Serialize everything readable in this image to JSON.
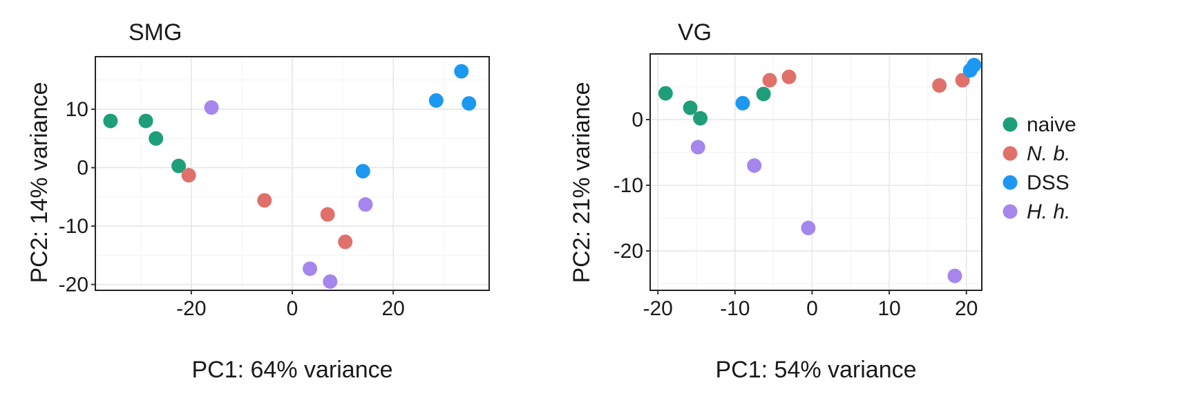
{
  "legend": {
    "title": "",
    "items": [
      {
        "label": "naive",
        "color": "#1f9e7a",
        "italic": false
      },
      {
        "label": "N. b.",
        "color": "#e0706a",
        "italic": true
      },
      {
        "label": "DSS",
        "color": "#1c98f0",
        "italic": false
      },
      {
        "label": "H. h.",
        "color": "#a586ec",
        "italic": true
      }
    ]
  },
  "chart_data": [
    {
      "type": "scatter",
      "title": "SMG",
      "xlabel": "PC1: 64% variance",
      "ylabel": "PC2: 14% variance",
      "xlim": [
        -39,
        39
      ],
      "ylim": [
        -21,
        19
      ],
      "xticks": [
        -20,
        0,
        20
      ],
      "yticks": [
        -20,
        -10,
        0,
        10
      ],
      "xtick_labels": [
        "-20",
        "0",
        "20"
      ],
      "ytick_labels": [
        "-20",
        "-10",
        "0",
        "10"
      ],
      "grid": true,
      "series": [
        {
          "name": "naive",
          "points": [
            {
              "x": -36,
              "y": 8
            },
            {
              "x": -29,
              "y": 8
            },
            {
              "x": -27,
              "y": 5
            },
            {
              "x": -22.5,
              "y": 0.3
            }
          ]
        },
        {
          "name": "N. b.",
          "points": [
            {
              "x": -20.5,
              "y": -1.3
            },
            {
              "x": -5.5,
              "y": -5.6
            },
            {
              "x": 7,
              "y": -8
            },
            {
              "x": 10.5,
              "y": -12.7
            }
          ]
        },
        {
          "name": "DSS",
          "points": [
            {
              "x": 14,
              "y": -0.6
            },
            {
              "x": 28.5,
              "y": 11.5
            },
            {
              "x": 33.5,
              "y": 16.5
            },
            {
              "x": 35,
              "y": 11
            }
          ]
        },
        {
          "name": "H. h.",
          "points": [
            {
              "x": -16,
              "y": 10.3
            },
            {
              "x": 3.5,
              "y": -17.3
            },
            {
              "x": 7.5,
              "y": -19.5
            },
            {
              "x": 14.5,
              "y": -6.3
            }
          ]
        }
      ]
    },
    {
      "type": "scatter",
      "title": "VG",
      "xlabel": "PC1: 54% variance",
      "ylabel": "PC2: 21% variance",
      "xlim": [
        -21,
        22
      ],
      "ylim": [
        -26,
        10
      ],
      "xticks": [
        -20,
        -10,
        0,
        10,
        20
      ],
      "yticks": [
        -20,
        -10,
        0
      ],
      "xtick_labels": [
        "-20",
        "-10",
        "0",
        "10",
        "20"
      ],
      "ytick_labels": [
        "-20",
        "-10",
        "0"
      ],
      "grid": true,
      "series": [
        {
          "name": "naive",
          "points": [
            {
              "x": -19,
              "y": 4
            },
            {
              "x": -15.8,
              "y": 1.8
            },
            {
              "x": -14.5,
              "y": 0.2
            },
            {
              "x": -6.3,
              "y": 3.9
            }
          ]
        },
        {
          "name": "N. b.",
          "points": [
            {
              "x": -5.5,
              "y": 6
            },
            {
              "x": -3,
              "y": 6.5
            },
            {
              "x": 16.5,
              "y": 5.2
            },
            {
              "x": 19.5,
              "y": 6
            }
          ]
        },
        {
          "name": "DSS",
          "points": [
            {
              "x": -9,
              "y": 2.5
            },
            {
              "x": 20.5,
              "y": 7.5
            },
            {
              "x": 21,
              "y": 8.3
            }
          ]
        },
        {
          "name": "H. h.",
          "points": [
            {
              "x": -14.8,
              "y": -4.2
            },
            {
              "x": -7.5,
              "y": -7
            },
            {
              "x": -0.5,
              "y": -16.5
            },
            {
              "x": 18.5,
              "y": -23.8
            }
          ]
        }
      ]
    }
  ]
}
